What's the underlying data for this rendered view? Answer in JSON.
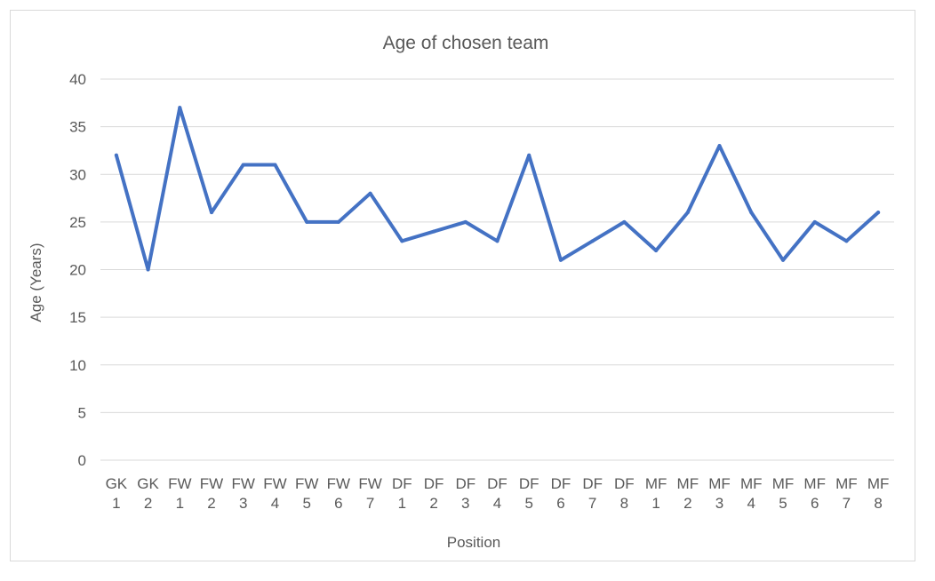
{
  "chart_data": {
    "type": "line",
    "title": "Age of chosen team",
    "xlabel": "Position",
    "ylabel": "Age (Years)",
    "ylim": [
      0,
      40
    ],
    "yticks": [
      0,
      5,
      10,
      15,
      20,
      25,
      30,
      35,
      40
    ],
    "grid": true,
    "legend": "none",
    "categories": [
      [
        "GK",
        "1"
      ],
      [
        "GK",
        "2"
      ],
      [
        "FW",
        "1"
      ],
      [
        "FW",
        "2"
      ],
      [
        "FW",
        "3"
      ],
      [
        "FW",
        "4"
      ],
      [
        "FW",
        "5"
      ],
      [
        "FW",
        "6"
      ],
      [
        "FW",
        "7"
      ],
      [
        "DF",
        "1"
      ],
      [
        "DF",
        "2"
      ],
      [
        "DF",
        "3"
      ],
      [
        "DF",
        "4"
      ],
      [
        "DF",
        "5"
      ],
      [
        "DF",
        "6"
      ],
      [
        "DF",
        "7"
      ],
      [
        "DF",
        "8"
      ],
      [
        "MF",
        "1"
      ],
      [
        "MF",
        "2"
      ],
      [
        "MF",
        "3"
      ],
      [
        "MF",
        "4"
      ],
      [
        "MF",
        "5"
      ],
      [
        "MF",
        "6"
      ],
      [
        "MF",
        "7"
      ],
      [
        "MF",
        "8"
      ]
    ],
    "series": [
      {
        "values": [
          32,
          20,
          37,
          26,
          31,
          31,
          25,
          25,
          28,
          23,
          24,
          25,
          23,
          32,
          21,
          23,
          25,
          22,
          26,
          33,
          26,
          21,
          25,
          23,
          26
        ],
        "color": "#4472c4"
      }
    ],
    "colors": {
      "grid": "#d9d9d9",
      "text": "#595959",
      "border": "#d9d9d9"
    }
  }
}
